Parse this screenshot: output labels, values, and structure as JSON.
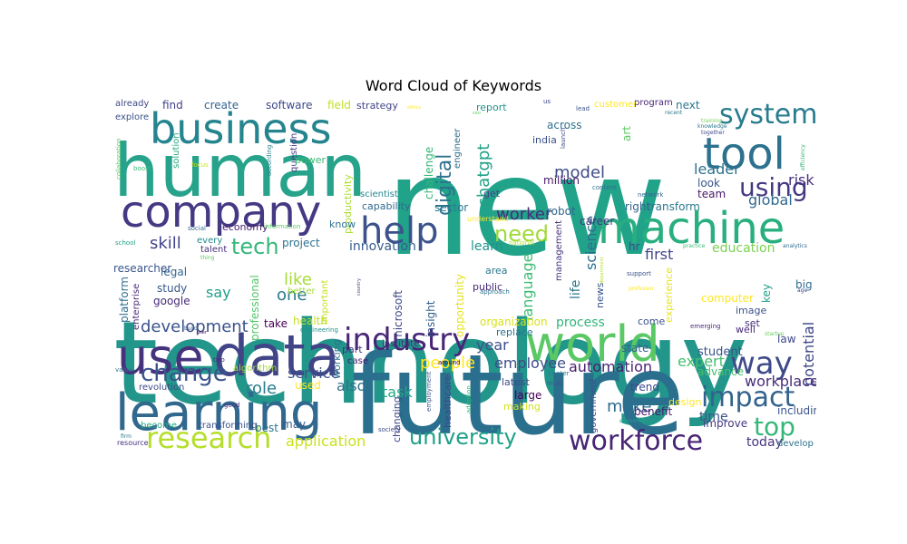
{
  "chart_data": {
    "type": "wordcloud",
    "title": "Word Cloud of Keywords",
    "colormap": "viridis",
    "background": "#ffffff",
    "words": [
      {
        "text": "new",
        "weight": 1.0,
        "color": "#21a38a"
      },
      {
        "text": "technology",
        "weight": 0.95,
        "color": "#23968b"
      },
      {
        "text": "future",
        "weight": 0.9,
        "color": "#2a6f8e"
      },
      {
        "text": "human",
        "weight": 0.75,
        "color": "#26a38a"
      },
      {
        "text": "data",
        "weight": 0.6,
        "color": "#414487"
      },
      {
        "text": "business",
        "weight": 0.5,
        "color": "#25858e"
      },
      {
        "text": "company",
        "weight": 0.5,
        "color": "#443983"
      },
      {
        "text": "world",
        "weight": 0.5,
        "color": "#5ac864"
      },
      {
        "text": "use",
        "weight": 0.5,
        "color": "#46337e"
      },
      {
        "text": "learning",
        "weight": 0.5,
        "color": "#31688e"
      },
      {
        "text": "machine",
        "weight": 0.45,
        "color": "#29af7f"
      },
      {
        "text": "tool",
        "weight": 0.45,
        "color": "#2c728e"
      },
      {
        "text": "help",
        "weight": 0.42,
        "color": "#3b528b"
      },
      {
        "text": "industry",
        "weight": 0.38,
        "color": "#482677"
      },
      {
        "text": "system",
        "weight": 0.32,
        "color": "#287d8e"
      },
      {
        "text": "research",
        "weight": 0.32,
        "color": "#b5de2b"
      },
      {
        "text": "way",
        "weight": 0.32,
        "color": "#3e4a89"
      },
      {
        "text": "impact",
        "weight": 0.3,
        "color": "#33638d"
      },
      {
        "text": "workforce",
        "weight": 0.3,
        "color": "#482475"
      },
      {
        "text": "using",
        "weight": 0.27,
        "color": "#453882"
      },
      {
        "text": "change",
        "weight": 0.25,
        "color": "#3a548c"
      },
      {
        "text": "university",
        "weight": 0.25,
        "color": "#1fa088"
      },
      {
        "text": "top",
        "weight": 0.25,
        "color": "#35b779"
      },
      {
        "text": "need",
        "weight": 0.22,
        "color": "#a0da39"
      },
      {
        "text": "tech",
        "weight": 0.22,
        "color": "#35b779"
      },
      {
        "text": "people",
        "weight": 0.2,
        "color": "#fde725"
      },
      {
        "text": "digital",
        "weight": 0.2,
        "color": "#2c728e"
      },
      {
        "text": "development",
        "weight": 0.2,
        "color": "#3b528b"
      },
      {
        "text": "role",
        "weight": 0.2,
        "color": "#287c8e"
      },
      {
        "text": "chatgpt",
        "weight": 0.18,
        "color": "#1fa187"
      },
      {
        "text": "skill",
        "weight": 0.18,
        "color": "#414487"
      },
      {
        "text": "model",
        "weight": 0.17,
        "color": "#3e4c8a"
      },
      {
        "text": "worker",
        "weight": 0.17,
        "color": "#472c7a"
      },
      {
        "text": "application",
        "weight": 0.17,
        "color": "#cae11f"
      },
      {
        "text": "automation",
        "weight": 0.17,
        "color": "#482071"
      },
      {
        "text": "potential",
        "weight": 0.17,
        "color": "#3f4788"
      },
      {
        "text": "employee",
        "weight": 0.16,
        "color": "#3e4c8a"
      },
      {
        "text": "science",
        "weight": 0.16,
        "color": "#2e6e8e"
      },
      {
        "text": "make",
        "weight": 0.16,
        "color": "#2e6d8e"
      },
      {
        "text": "workplace",
        "weight": 0.15,
        "color": "#472d7b"
      },
      {
        "text": "like",
        "weight": 0.15,
        "color": "#a8db34"
      },
      {
        "text": "year",
        "weight": 0.15,
        "color": "#3c508b"
      },
      {
        "text": "expert",
        "weight": 0.15,
        "color": "#44bf70"
      },
      {
        "text": "service",
        "weight": 0.15,
        "color": "#3b528b"
      },
      {
        "text": "one",
        "weight": 0.15,
        "color": "#2a788e"
      },
      {
        "text": "language",
        "weight": 0.14,
        "color": "#3dbc74"
      },
      {
        "text": "leader",
        "weight": 0.14,
        "color": "#2d718e"
      },
      {
        "text": "global",
        "weight": 0.14,
        "color": "#31688e"
      },
      {
        "text": "education",
        "weight": 0.14,
        "color": "#7ad151"
      },
      {
        "text": "risk",
        "weight": 0.14,
        "color": "#46307e"
      },
      {
        "text": "say",
        "weight": 0.14,
        "color": "#1f9e89"
      },
      {
        "text": "process",
        "weight": 0.13,
        "color": "#31b57b"
      },
      {
        "text": "today",
        "weight": 0.13,
        "color": "#46327e"
      },
      {
        "text": "also",
        "weight": 0.13,
        "color": "#2d708e"
      },
      {
        "text": "task",
        "weight": 0.13,
        "color": "#22a785"
      },
      {
        "text": "time",
        "weight": 0.12,
        "color": "#39558c"
      },
      {
        "text": "innovation",
        "weight": 0.12,
        "color": "#365c8d"
      },
      {
        "text": "learn",
        "weight": 0.12,
        "color": "#1f948c"
      },
      {
        "text": "life",
        "weight": 0.12,
        "color": "#2b758e"
      },
      {
        "text": "first",
        "weight": 0.12,
        "color": "#404588"
      },
      {
        "text": "insight",
        "weight": 0.11,
        "color": "#34608d"
      },
      {
        "text": "microsoft",
        "weight": 0.11,
        "color": "#3f4788"
      },
      {
        "text": "opportunity",
        "weight": 0.11,
        "color": "#e5e419"
      },
      {
        "text": "productivity",
        "weight": 0.11,
        "color": "#addc30"
      },
      {
        "text": "professional",
        "weight": 0.11,
        "color": "#52c569"
      },
      {
        "text": "platform",
        "weight": 0.11,
        "color": "#2f6c8e"
      },
      {
        "text": "google",
        "weight": 0.11,
        "color": "#472a7a"
      },
      {
        "text": "study",
        "weight": 0.11,
        "color": "#39568c"
      },
      {
        "text": "legal",
        "weight": 0.11,
        "color": "#31678e"
      },
      {
        "text": "software",
        "weight": 0.1,
        "color": "#3f4889"
      },
      {
        "text": "create",
        "weight": 0.1,
        "color": "#33638d"
      },
      {
        "text": "find",
        "weight": 0.1,
        "color": "#424186"
      },
      {
        "text": "field",
        "weight": 0.1,
        "color": "#c0df25"
      },
      {
        "text": "strategy",
        "weight": 0.1,
        "color": "#404588"
      },
      {
        "text": "report",
        "weight": 0.1,
        "color": "#1f958b"
      },
      {
        "text": "across",
        "weight": 0.1,
        "color": "#2d718e"
      },
      {
        "text": "program",
        "weight": 0.09,
        "color": "#482677"
      },
      {
        "text": "next",
        "weight": 0.1,
        "color": "#2a778e"
      },
      {
        "text": "customer",
        "weight": 0.09,
        "color": "#fde725"
      },
      {
        "text": "art",
        "weight": 0.09,
        "color": "#5ec962"
      },
      {
        "text": "million",
        "weight": 0.1,
        "color": "#481769"
      },
      {
        "text": "india",
        "weight": 0.1,
        "color": "#3b518b"
      },
      {
        "text": "challenge",
        "weight": 0.1,
        "color": "#35b779"
      },
      {
        "text": "engineer",
        "weight": 0.09,
        "color": "#2f6c8e"
      },
      {
        "text": "sector",
        "weight": 0.1,
        "color": "#2a788e"
      },
      {
        "text": "get",
        "weight": 0.1,
        "color": "#3f4788"
      },
      {
        "text": "capability",
        "weight": 0.1,
        "color": "#31688e"
      },
      {
        "text": "scientist",
        "weight": 0.09,
        "color": "#24878e"
      },
      {
        "text": "question",
        "weight": 0.09,
        "color": "#453781"
      },
      {
        "text": "power",
        "weight": 0.1,
        "color": "#3aba76"
      },
      {
        "text": "solution",
        "weight": 0.09,
        "color": "#25ab82"
      },
      {
        "text": "look",
        "weight": 0.1,
        "color": "#3a548c"
      },
      {
        "text": "team",
        "weight": 0.1,
        "color": "#481769"
      },
      {
        "text": "transform",
        "weight": 0.1,
        "color": "#2a788e"
      },
      {
        "text": "right",
        "weight": 0.1,
        "color": "#33638d"
      },
      {
        "text": "robot",
        "weight": 0.1,
        "color": "#31688e"
      },
      {
        "text": "career",
        "weight": 0.1,
        "color": "#453882"
      },
      {
        "text": "hr",
        "weight": 0.1,
        "color": "#3f4889"
      },
      {
        "text": "researcher",
        "weight": 0.1,
        "color": "#39568c"
      },
      {
        "text": "economy",
        "weight": 0.09,
        "color": "#481f70"
      },
      {
        "text": "project",
        "weight": 0.1,
        "color": "#2c728e"
      },
      {
        "text": "know",
        "weight": 0.09,
        "color": "#2c718e"
      },
      {
        "text": "talent",
        "weight": 0.08,
        "color": "#46307e"
      },
      {
        "text": "every",
        "weight": 0.08,
        "color": "#23898e"
      },
      {
        "text": "management",
        "weight": 0.09,
        "color": "#46337e"
      },
      {
        "text": "computer",
        "weight": 0.1,
        "color": "#fde725"
      },
      {
        "text": "image",
        "weight": 0.09,
        "color": "#3b528b"
      },
      {
        "text": "set",
        "weight": 0.09,
        "color": "#46327e"
      },
      {
        "text": "well",
        "weight": 0.09,
        "color": "#482878"
      },
      {
        "text": "law",
        "weight": 0.09,
        "color": "#3e4989"
      },
      {
        "text": "key",
        "weight": 0.09,
        "color": "#1f9f88"
      },
      {
        "text": "big",
        "weight": 0.09,
        "color": "#2e6d8e"
      },
      {
        "text": "health",
        "weight": 0.1,
        "color": "#c2df23"
      },
      {
        "text": "take",
        "weight": 0.1,
        "color": "#440154"
      },
      {
        "text": "organization",
        "weight": 0.1,
        "color": "#d8e219"
      },
      {
        "text": "replace",
        "weight": 0.09,
        "color": "#2c738e"
      },
      {
        "text": "public",
        "weight": 0.09,
        "color": "#482878"
      },
      {
        "text": "area",
        "weight": 0.09,
        "color": "#2a778e"
      },
      {
        "text": "news",
        "weight": 0.09,
        "color": "#39568c"
      },
      {
        "text": "experience",
        "weight": 0.09,
        "color": "#e7e419"
      },
      {
        "text": "come",
        "weight": 0.09,
        "color": "#3b528b"
      },
      {
        "text": "student",
        "weight": 0.1,
        "color": "#3b528b"
      },
      {
        "text": "state",
        "weight": 0.09,
        "color": "#33628d"
      },
      {
        "text": "advance",
        "weight": 0.09,
        "color": "#46c06f"
      },
      {
        "text": "trend",
        "weight": 0.09,
        "color": "#3e4989"
      },
      {
        "text": "benefit",
        "weight": 0.09,
        "color": "#481b6d"
      },
      {
        "text": "improve",
        "weight": 0.09,
        "color": "#443a83"
      },
      {
        "text": "including",
        "weight": 0.09,
        "color": "#3a548c"
      },
      {
        "text": "develop",
        "weight": 0.08,
        "color": "#2c728e"
      },
      {
        "text": "design",
        "weight": 0.09,
        "color": "#fde725"
      },
      {
        "text": "government",
        "weight": 0.09,
        "color": "#3b528b"
      },
      {
        "text": "latest",
        "weight": 0.09,
        "color": "#3d4d8a"
      },
      {
        "text": "large",
        "weight": 0.1,
        "color": "#440154"
      },
      {
        "text": "making",
        "weight": 0.09,
        "color": "#d2e21b"
      },
      {
        "text": "healthcare",
        "weight": 0.09,
        "color": "#3e4989"
      },
      {
        "text": "changing",
        "weight": 0.09,
        "color": "#3f4788"
      },
      {
        "text": "case",
        "weight": 0.08,
        "color": "#481a6c"
      },
      {
        "text": "institute",
        "weight": 0.08,
        "color": "#482979"
      },
      {
        "text": "part",
        "weight": 0.09,
        "color": "#46327e"
      },
      {
        "text": "working",
        "weight": 0.09,
        "color": "#2c728e"
      },
      {
        "text": "used",
        "weight": 0.09,
        "color": "#fde725"
      },
      {
        "text": "may",
        "weight": 0.09,
        "color": "#365c8d"
      },
      {
        "text": "best",
        "weight": 0.09,
        "color": "#2b758e"
      },
      {
        "text": "transforming",
        "weight": 0.09,
        "color": "#3b528b"
      },
      {
        "text": "become",
        "weight": 0.08,
        "color": "#26ad81"
      },
      {
        "text": "resource",
        "weight": 0.07,
        "color": "#46307e"
      },
      {
        "text": "revolution",
        "weight": 0.08,
        "color": "#3e4a89"
      },
      {
        "text": "algorithm",
        "weight": 0.08,
        "color": "#a5db36"
      },
      {
        "text": "enterprise",
        "weight": 0.08,
        "color": "#472c7a"
      },
      {
        "text": "explore",
        "weight": 0.08,
        "color": "#3b528b"
      },
      {
        "text": "already",
        "weight": 0.08,
        "color": "#3e4989"
      },
      {
        "text": "better",
        "weight": 0.08,
        "color": "#a2da37"
      },
      {
        "text": "important",
        "weight": 0.08,
        "color": "#c8e020"
      },
      {
        "text": "engineering",
        "weight": 0.07,
        "color": "#20928c"
      },
      {
        "text": "collaboration",
        "weight": 0.07,
        "color": "#5ec962"
      },
      {
        "text": "boost",
        "weight": 0.07,
        "color": "#3aba76"
      },
      {
        "text": "focus",
        "weight": 0.07,
        "color": "#cde11d"
      },
      {
        "text": "according",
        "weight": 0.07,
        "color": "#26828e"
      },
      {
        "text": "school",
        "weight": 0.06,
        "color": "#1f9f88"
      },
      {
        "text": "social",
        "weight": 0.06,
        "color": "#31688e"
      },
      {
        "text": "information",
        "weight": 0.06,
        "color": "#5ac864"
      },
      {
        "text": "good",
        "weight": 0.06,
        "color": "#472a7a"
      },
      {
        "text": "value",
        "weight": 0.06,
        "color": "#287d8e"
      },
      {
        "text": "two",
        "weight": 0.06,
        "color": "#472a7a"
      },
      {
        "text": "society",
        "weight": 0.06,
        "color": "#3e4a89"
      },
      {
        "text": "employment",
        "weight": 0.06,
        "color": "#3b528b"
      },
      {
        "text": "around",
        "weight": 0.07,
        "color": "#440154"
      },
      {
        "text": "adoption",
        "weight": 0.06,
        "color": "#35b779"
      },
      {
        "text": "approach",
        "weight": 0.07,
        "color": "#2c728e"
      },
      {
        "text": "national",
        "weight": 0.07,
        "color": "#b5de2b"
      },
      {
        "text": "understand",
        "weight": 0.07,
        "color": "#fde725"
      },
      {
        "text": "content",
        "weight": 0.06,
        "color": "#2e6e8e"
      },
      {
        "text": "network",
        "weight": 0.06,
        "color": "#31688e"
      },
      {
        "text": "launch",
        "weight": 0.07,
        "color": "#3e4989"
      },
      {
        "text": "lead",
        "weight": 0.06,
        "color": "#3b528b"
      },
      {
        "text": "us",
        "weight": 0.06,
        "color": "#414487"
      },
      {
        "text": "center",
        "weight": 0.06,
        "color": "#2a778e"
      },
      {
        "text": "must",
        "weight": 0.06,
        "color": "#39568c"
      },
      {
        "text": "economic",
        "weight": 0.06,
        "color": "#21a685"
      },
      {
        "text": "emerging",
        "weight": 0.06,
        "color": "#482878"
      },
      {
        "text": "support",
        "weight": 0.06,
        "color": "#3b528b"
      },
      {
        "text": "professor",
        "weight": 0.06,
        "color": "#fde725"
      },
      {
        "text": "practice",
        "weight": 0.06,
        "color": "#3aba76"
      },
      {
        "text": "knowledge",
        "weight": 0.06,
        "color": "#2a788e"
      },
      {
        "text": "together",
        "weight": 0.06,
        "color": "#3e4989"
      },
      {
        "text": "training",
        "weight": 0.06,
        "color": "#75d054"
      },
      {
        "text": "efficiency",
        "weight": 0.06,
        "color": "#35b779"
      },
      {
        "text": "recent",
        "weight": 0.06,
        "color": "#2a788e"
      },
      {
        "text": "analytics",
        "weight": 0.06,
        "color": "#31688e"
      },
      {
        "text": "age",
        "weight": 0.06,
        "color": "#3e4989"
      },
      {
        "text": "startup",
        "weight": 0.06,
        "color": "#6ccd5a"
      },
      {
        "text": "build",
        "weight": 0.06,
        "color": "#39568c"
      },
      {
        "text": "firm",
        "weight": 0.06,
        "color": "#2a788e"
      },
      {
        "text": "thing",
        "weight": 0.05,
        "color": "#5ec962"
      },
      {
        "text": "user",
        "weight": 0.05,
        "color": "#440154"
      },
      {
        "text": "country",
        "weight": 0.05,
        "color": "#414487"
      },
      {
        "text": "ethics",
        "weight": 0.05,
        "color": "#fde725"
      },
      {
        "text": "ceo",
        "weight": 0.05,
        "color": "#5ec962"
      },
      {
        "text": "department",
        "weight": 0.05,
        "color": "#b5de2b"
      }
    ]
  }
}
